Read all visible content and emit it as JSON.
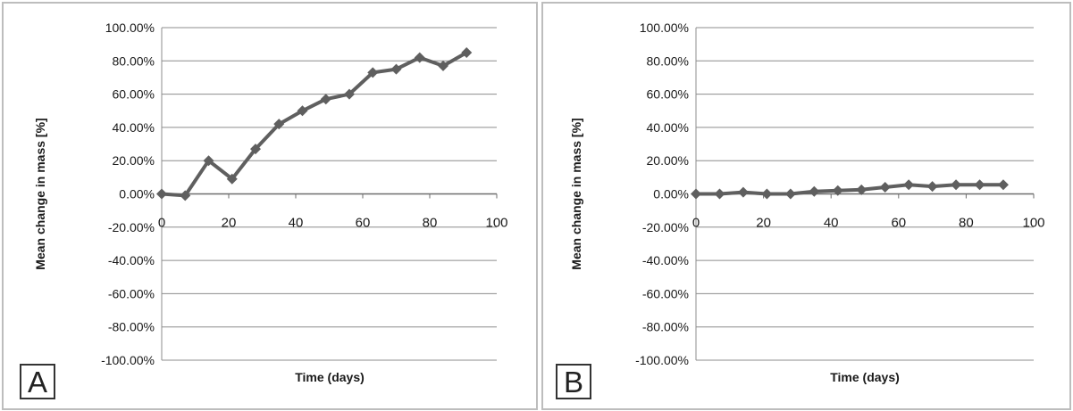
{
  "chart_data": [
    {
      "type": "line",
      "panel_label": "A",
      "xlabel": "Time (days)",
      "ylabel": "Mean change in mass [%]",
      "xlim": [
        0,
        100
      ],
      "ylim": [
        -100,
        100
      ],
      "x_ticks": [
        "0",
        "20",
        "40",
        "60",
        "80",
        "100"
      ],
      "y_ticks": [
        "100.00%",
        "80.00%",
        "60.00%",
        "40.00%",
        "20.00%",
        "0.00%",
        "-20.00%",
        "-40.00%",
        "-60.00%",
        "-80.00%",
        "-100.00%"
      ],
      "grid": "horizontal",
      "legend": "none",
      "series": [
        {
          "color": "#5f5f5f",
          "marker": "diamond",
          "x": [
            0,
            7,
            14,
            21,
            28,
            35,
            42,
            49,
            56,
            63,
            70,
            77,
            84,
            91
          ],
          "y": [
            0,
            -1,
            20,
            9,
            27,
            42,
            50,
            57,
            60,
            73,
            75,
            82,
            77,
            85
          ]
        }
      ]
    },
    {
      "type": "line",
      "panel_label": "B",
      "xlabel": "Time (days)",
      "ylabel": "Mean change in mass [%]",
      "xlim": [
        0,
        100
      ],
      "ylim": [
        -100,
        100
      ],
      "x_ticks": [
        "0",
        "20",
        "40",
        "60",
        "80",
        "100"
      ],
      "y_ticks": [
        "100.00%",
        "80.00%",
        "60.00%",
        "40.00%",
        "20.00%",
        "0.00%",
        "-20.00%",
        "-40.00%",
        "-60.00%",
        "-80.00%",
        "-100.00%"
      ],
      "grid": "horizontal",
      "legend": "none",
      "series": [
        {
          "color": "#5f5f5f",
          "marker": "diamond",
          "x": [
            0,
            7,
            14,
            21,
            28,
            35,
            42,
            49,
            56,
            63,
            70,
            77,
            84,
            91
          ],
          "y": [
            0,
            0,
            1,
            0,
            0,
            1.5,
            2,
            2.5,
            4,
            5.5,
            4.5,
            5.5,
            5.5,
            5.5
          ]
        }
      ]
    }
  ]
}
